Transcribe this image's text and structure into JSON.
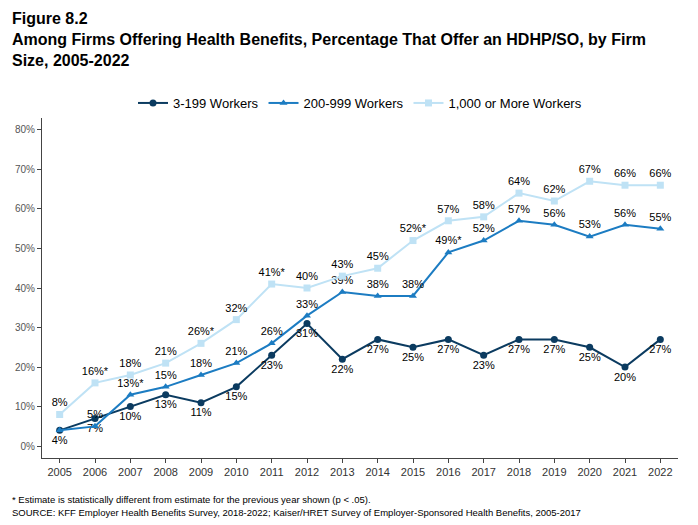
{
  "chart_data": {
    "type": "line",
    "title": "Figure 8.2",
    "subtitle": "Among Firms Offering Health Benefits, Percentage That Offer an HDHP/SO, by Firm Size, 2005-2022",
    "annotations": [
      "* Estimate is statistically different from estimate for the previous year shown (p < .05).",
      "SOURCE: KFF Employer Health Benefits Survey, 2018-2022; Kaiser/HRET Survey of Employer-Sponsored Health Benefits, 2005-2017"
    ],
    "categories": [
      "2005",
      "2006",
      "2007",
      "2008",
      "2009",
      "2010",
      "2011",
      "2012",
      "2013",
      "2014",
      "2015",
      "2016",
      "2017",
      "2018",
      "2019",
      "2020",
      "2021",
      "2022"
    ],
    "series": [
      {
        "name": "3-199 Workers",
        "color": "#0b3b60",
        "marker": "circle",
        "values": [
          4,
          7,
          10,
          13,
          11,
          15,
          23,
          31,
          22,
          27,
          25,
          27,
          23,
          27,
          27,
          25,
          20,
          27
        ],
        "value_labels": [
          "4%",
          "7%",
          "10%",
          "13%",
          "11%",
          "15%",
          "23%",
          "31%",
          "22%",
          "27%",
          "25%",
          "27%",
          "23%",
          "27%",
          "27%",
          "25%",
          "20%",
          "27%"
        ]
      },
      {
        "name": "200-999 Workers",
        "color": "#1c7cc2",
        "marker": "triangle-up",
        "values": [
          4,
          5,
          13,
          15,
          18,
          21,
          26,
          33,
          39,
          38,
          38,
          49,
          52,
          57,
          56,
          53,
          56,
          55
        ],
        "value_labels": [
          null,
          "5%",
          "13%*",
          "15%",
          "18%",
          "21%",
          "26%",
          "33%",
          "39%",
          "38%",
          "38%",
          "49%*",
          "52%",
          "57%",
          "56%",
          "53%",
          "56%",
          "55%"
        ]
      },
      {
        "name": "1,000 or More Workers",
        "color": "#bfe2f5",
        "marker": "square",
        "values": [
          8,
          16,
          18,
          21,
          26,
          32,
          41,
          40,
          43,
          45,
          52,
          57,
          58,
          64,
          62,
          67,
          66,
          66
        ],
        "value_labels": [
          "8%",
          "16%*",
          "18%",
          "21%",
          "26%*",
          "32%",
          "41%*",
          "40%",
          "43%",
          "45%",
          "52%*",
          "57%",
          "58%",
          "64%",
          "62%",
          "67%",
          "66%",
          "66%"
        ]
      }
    ],
    "ylim": [
      -3,
      83
    ],
    "yticks": [
      {
        "value": 0,
        "label": "0%"
      },
      {
        "value": 10,
        "label": "10%"
      },
      {
        "value": 20,
        "label": "20%"
      },
      {
        "value": 30,
        "label": "30%"
      },
      {
        "value": 40,
        "label": "40%"
      },
      {
        "value": 50,
        "label": "50%"
      },
      {
        "value": 60,
        "label": "60%"
      },
      {
        "value": 70,
        "label": "70%"
      },
      {
        "value": 80,
        "label": "80%"
      }
    ],
    "grid": false,
    "legend": "top",
    "data_labels": true
  }
}
